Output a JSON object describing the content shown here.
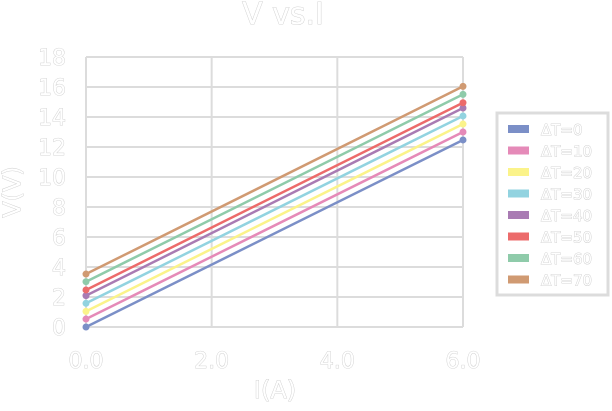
{
  "chart_data": {
    "type": "line",
    "title": "V vs.I",
    "xlabel": "I(A)",
    "ylabel": "V(V)",
    "xlim": [
      0,
      6
    ],
    "ylim": [
      0,
      18
    ],
    "xticks": [
      "0.0",
      "2.0",
      "4.0",
      "6.0"
    ],
    "xtick_values": [
      0,
      2,
      4,
      6
    ],
    "yticks": [
      "0",
      "2",
      "4",
      "6",
      "8",
      "10",
      "12",
      "14",
      "16",
      "18"
    ],
    "ytick_values": [
      0,
      2,
      4,
      6,
      8,
      10,
      12,
      14,
      16,
      18
    ],
    "grid": true,
    "legend_placement": "right",
    "x": [
      0,
      6
    ],
    "series": [
      {
        "name": "ΔT=0",
        "color": "#7b8fc7",
        "values": [
          0.0,
          12.47
        ]
      },
      {
        "name": "ΔT=10",
        "color": "#e58ab8",
        "values": [
          0.53,
          13.0
        ]
      },
      {
        "name": "ΔT=20",
        "color": "#fbf38a",
        "values": [
          1.04,
          13.53
        ]
      },
      {
        "name": "ΔT=30",
        "color": "#92d3e0",
        "values": [
          1.58,
          14.07
        ]
      },
      {
        "name": "ΔT=40",
        "color": "#a97bb3",
        "values": [
          2.09,
          14.6
        ]
      },
      {
        "name": "ΔT=50",
        "color": "#ec6b6b",
        "values": [
          2.47,
          14.95
        ]
      },
      {
        "name": "ΔT=60",
        "color": "#8fcbaa",
        "values": [
          3.02,
          15.51
        ]
      },
      {
        "name": "ΔT=70",
        "color": "#d09a72",
        "values": [
          3.53,
          16.04
        ]
      }
    ]
  }
}
